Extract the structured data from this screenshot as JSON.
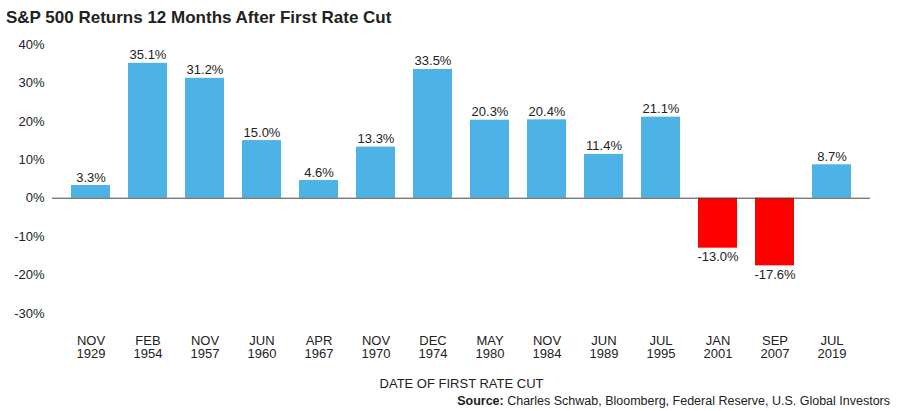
{
  "chart_data": {
    "type": "bar",
    "title": "S&P 500 Returns 12 Months After First Rate Cut",
    "x_label": "DATE OF FIRST RATE CUT",
    "source_label": "Source:",
    "source": "Charles Schwab, Bloomberg, Federal Reserve, U.S. Global Investors",
    "categories": [
      "NOV\n1929",
      "FEB\n1954",
      "NOV\n1957",
      "JUN\n1960",
      "APR\n1967",
      "NOV\n1970",
      "DEC\n1974",
      "MAY\n1980",
      "NOV\n1984",
      "JUN\n1989",
      "JUL\n1995",
      "JAN\n2001",
      "SEP\n2007",
      "JUL\n2019"
    ],
    "values": [
      3.3,
      35.1,
      31.2,
      15.0,
      4.6,
      13.3,
      33.5,
      20.3,
      20.4,
      11.4,
      21.1,
      -13.0,
      -17.6,
      8.7
    ],
    "value_labels": [
      "3.3%",
      "35.1%",
      "31.2%",
      "15.0%",
      "4.6%",
      "13.3%",
      "33.5%",
      "20.3%",
      "20.4%",
      "11.4%",
      "21.1%",
      "-13.0%",
      "-17.6%",
      "8.7%"
    ],
    "colors": [
      "#4db3e6",
      "#4db3e6",
      "#4db3e6",
      "#4db3e6",
      "#4db3e6",
      "#4db3e6",
      "#4db3e6",
      "#4db3e6",
      "#4db3e6",
      "#4db3e6",
      "#4db3e6",
      "#ff0000",
      "#ff0000",
      "#4db3e6"
    ],
    "ylim": [
      -30,
      40
    ],
    "yticks": [
      {
        "value": -30,
        "label": "-30%"
      },
      {
        "value": -20,
        "label": "-20%"
      },
      {
        "value": -10,
        "label": "-10%"
      },
      {
        "value": 0,
        "label": "0%"
      },
      {
        "value": 10,
        "label": "10%"
      },
      {
        "value": 20,
        "label": "20%"
      },
      {
        "value": 30,
        "label": "30%"
      },
      {
        "value": 40,
        "label": "40%"
      }
    ],
    "grid": false,
    "data_labels": true
  }
}
